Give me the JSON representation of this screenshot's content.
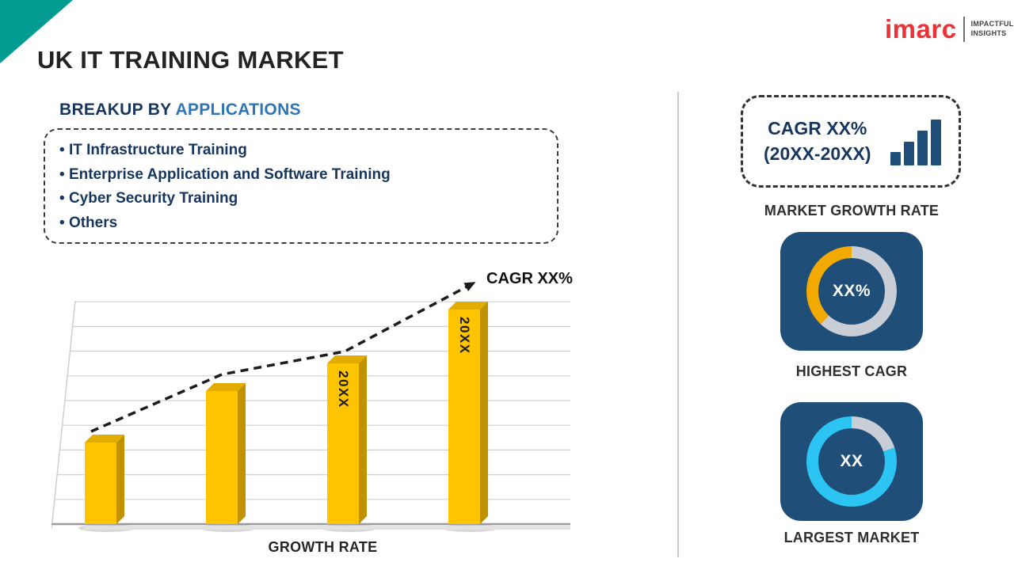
{
  "page": {
    "title": "UK IT TRAINING MARKET"
  },
  "logo": {
    "brand": "imarc",
    "tagline_top": "IMPACTFUL",
    "tagline_bottom": "INSIGHTS"
  },
  "breakup": {
    "prefix": "BREAKUP BY ",
    "highlight": "APPLICATIONS",
    "items": [
      "IT Infrastructure Training",
      "Enterprise Application and Software Training",
      "Cyber Security Training",
      "Others"
    ]
  },
  "chart_data": {
    "type": "bar",
    "title": "",
    "categories": [
      "",
      "",
      "20XX",
      "20XX"
    ],
    "values": [
      3.3,
      5.4,
      6.5,
      8.7
    ],
    "bar_labels": [
      "",
      "",
      "20XX",
      "20XX"
    ],
    "xlabel": "GROWTH RATE",
    "ylabel": "",
    "ylim": [
      0,
      9
    ],
    "gridlines": true,
    "annotation": "CAGR XX%",
    "trendline": "dashed ascending arrow above bars",
    "bar_color": "#FFC400",
    "legend": "none"
  },
  "sidebar": {
    "growth_box": {
      "line1": "CAGR XX%",
      "line2": "(20XX-20XX)"
    },
    "growth_label": "MARKET GROWTH RATE",
    "highest_cagr": {
      "value": "XX%",
      "label": "HIGHEST CAGR",
      "segments": [
        {
          "color": "#C9CED6",
          "pct": 62
        },
        {
          "color": "#F2A900",
          "pct": 38
        }
      ]
    },
    "largest_market": {
      "value": "XX",
      "label": "LARGEST MARKET",
      "segments": [
        {
          "color": "#C9CED6",
          "pct": 20
        },
        {
          "color": "#2BC4F3",
          "pct": 80
        }
      ]
    }
  },
  "colors": {
    "corner_accent": "#009C92",
    "brand_red": "#ED3237",
    "navy_text": "#17365D",
    "highlight_blue": "#2E75B6",
    "bar_yellow": "#FFC400",
    "card_blue": "#1F4E79",
    "ring_gray": "#C9CED6",
    "cyan": "#2BC4F3",
    "gold_segment": "#F2A900"
  }
}
